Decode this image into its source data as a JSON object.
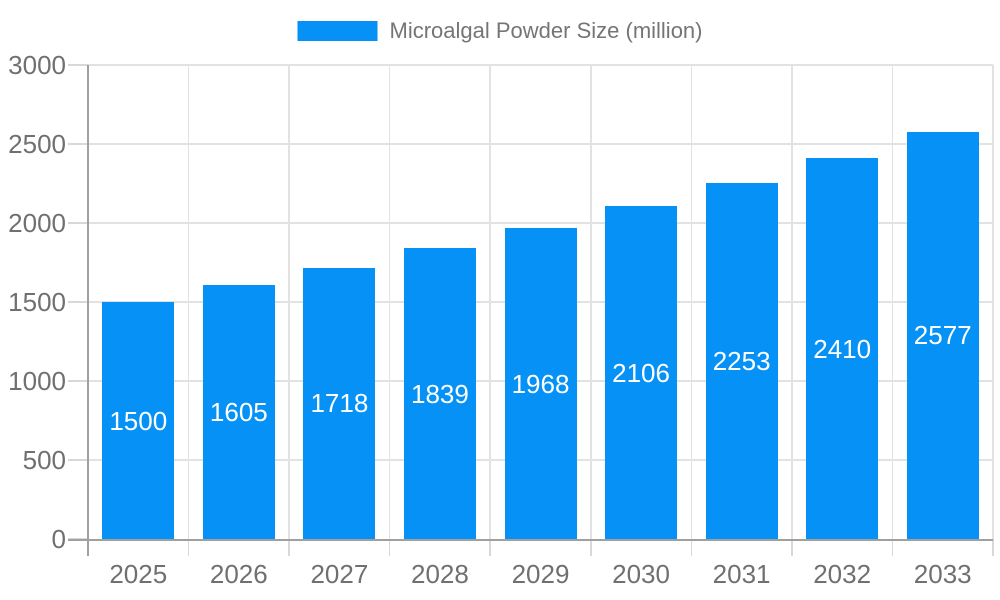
{
  "legend": {
    "label": "Microalgal Powder Size (million)"
  },
  "chart_data": {
    "type": "bar",
    "title": "Microalgal Powder Size (million)",
    "series_name": "Microalgal Powder Size (million)",
    "categories": [
      "2025",
      "2026",
      "2027",
      "2028",
      "2029",
      "2030",
      "2031",
      "2032",
      "2033"
    ],
    "values": [
      1500,
      1605,
      1718,
      1839,
      1968,
      2106,
      2253,
      2410,
      2577
    ],
    "bar_labels": [
      "1500",
      "1605",
      "1718",
      "1839",
      "1968",
      "2106",
      "2253",
      "2410",
      "2577"
    ],
    "xlabel": "",
    "ylabel": "",
    "ylim": [
      0,
      3000
    ],
    "yticks": [
      0,
      500,
      1000,
      1500,
      2000,
      2500,
      3000
    ],
    "ytick_labels": [
      "0",
      "500",
      "1000",
      "1500",
      "2000",
      "2500",
      "3000"
    ],
    "grid": true,
    "legend_position": "top-center",
    "bar_label_position": "inside-center",
    "colors": {
      "bar": "#0591F5",
      "bar_label": "#FFFFFF",
      "axis_line": "#A0A0A0",
      "grid_line": "#E2E2E2",
      "tick_line": "#D8D8D8",
      "tick_text": "#707070",
      "legend_text": "#757575",
      "background": "#FFFFFF"
    }
  }
}
